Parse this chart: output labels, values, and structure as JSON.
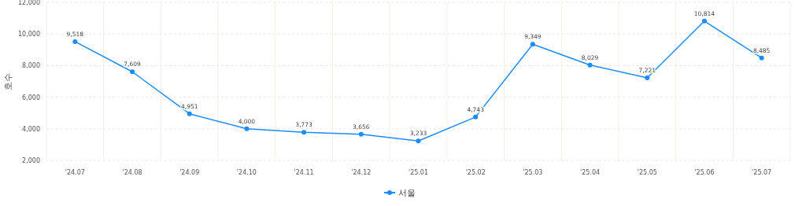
{
  "chart_data": {
    "type": "line",
    "ylabel": "호수",
    "categories": [
      "'24.07",
      "'24.08",
      "'24.09",
      "'24.10",
      "'24.11",
      "'24.12",
      "'25.01",
      "'25.02",
      "'25.03",
      "'25.04",
      "'25.05",
      "'25.06",
      "'25.07"
    ],
    "series": [
      {
        "name": "서울",
        "color": "#1a8cff",
        "values": [
          9518,
          7609,
          4951,
          4000,
          3773,
          3656,
          3233,
          4743,
          9349,
          8029,
          7221,
          10814,
          8485
        ],
        "value_labels": [
          "9,518",
          "7,609",
          "4,951",
          "4,000",
          "3,773",
          "3,656",
          "3,233",
          "4,743",
          "9,349",
          "8,029",
          "7,221",
          "10,814",
          "8,485"
        ]
      }
    ],
    "ylim": [
      2000,
      12000
    ],
    "yticks": [
      {
        "value": 2000,
        "label": "2,000"
      },
      {
        "value": 4000,
        "label": "4,000"
      },
      {
        "value": 6000,
        "label": "6,000"
      },
      {
        "value": 8000,
        "label": "8,000"
      },
      {
        "value": 10000,
        "label": "10,000"
      },
      {
        "value": 12000,
        "label": "12,000"
      }
    ],
    "grid": true,
    "legend": "bottom",
    "marker": "circle",
    "line_style": "solid"
  }
}
